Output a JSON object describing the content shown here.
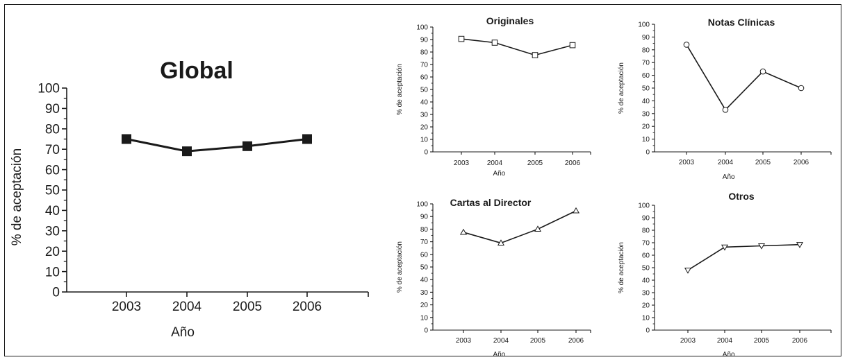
{
  "chart_data": [
    {
      "type": "line",
      "title": "Global",
      "xlabel": "Año",
      "ylabel": "% de aceptación",
      "categories": [
        "2003",
        "2004",
        "2005",
        "2006"
      ],
      "values": [
        75,
        69,
        71.5,
        75
      ],
      "ylim": [
        0,
        100
      ],
      "yticks": [
        0,
        10,
        20,
        30,
        40,
        50,
        60,
        70,
        80,
        90,
        100
      ],
      "marker": "square-filled",
      "grid": false
    },
    {
      "type": "line",
      "title": "Originales",
      "xlabel": "Año",
      "ylabel": "% de aceptación",
      "categories": [
        "2003",
        "2004",
        "2005",
        "2006"
      ],
      "values": [
        90.5,
        87.5,
        77.5,
        85.5
      ],
      "ylim": [
        0,
        100
      ],
      "yticks": [
        0,
        10,
        20,
        30,
        40,
        50,
        60,
        70,
        80,
        90,
        100
      ],
      "marker": "square-open",
      "grid": false
    },
    {
      "type": "line",
      "title": "Notas Clínicas",
      "xlabel": "Año",
      "ylabel": "% de aceptación",
      "categories": [
        "2003",
        "2004",
        "2005",
        "2006"
      ],
      "values": [
        84,
        33,
        63,
        50
      ],
      "ylim": [
        0,
        100
      ],
      "yticks": [
        0,
        10,
        20,
        30,
        40,
        50,
        60,
        70,
        80,
        90,
        100
      ],
      "marker": "circle-open",
      "grid": false
    },
    {
      "type": "line",
      "title": "Cartas al Director",
      "xlabel": "Año",
      "ylabel": "% de aceptación",
      "categories": [
        "2003",
        "2004",
        "2005",
        "2006"
      ],
      "values": [
        77.5,
        69,
        80,
        94.5
      ],
      "ylim": [
        0,
        100
      ],
      "yticks": [
        0,
        10,
        20,
        30,
        40,
        50,
        60,
        70,
        80,
        90,
        100
      ],
      "marker": "triangle-up-open",
      "grid": false
    },
    {
      "type": "line",
      "title": "Otros",
      "xlabel": "Año",
      "ylabel": "% de aceptación",
      "categories": [
        "2003",
        "2004",
        "2005",
        "2006"
      ],
      "values": [
        48,
        66.5,
        67.5,
        68.5
      ],
      "ylim": [
        0,
        100
      ],
      "yticks": [
        0,
        10,
        20,
        30,
        40,
        50,
        60,
        70,
        80,
        90,
        100
      ],
      "marker": "triangle-down-open",
      "grid": false
    }
  ],
  "colors": {
    "ink": "#1a1a1a",
    "background": "#ffffff"
  }
}
